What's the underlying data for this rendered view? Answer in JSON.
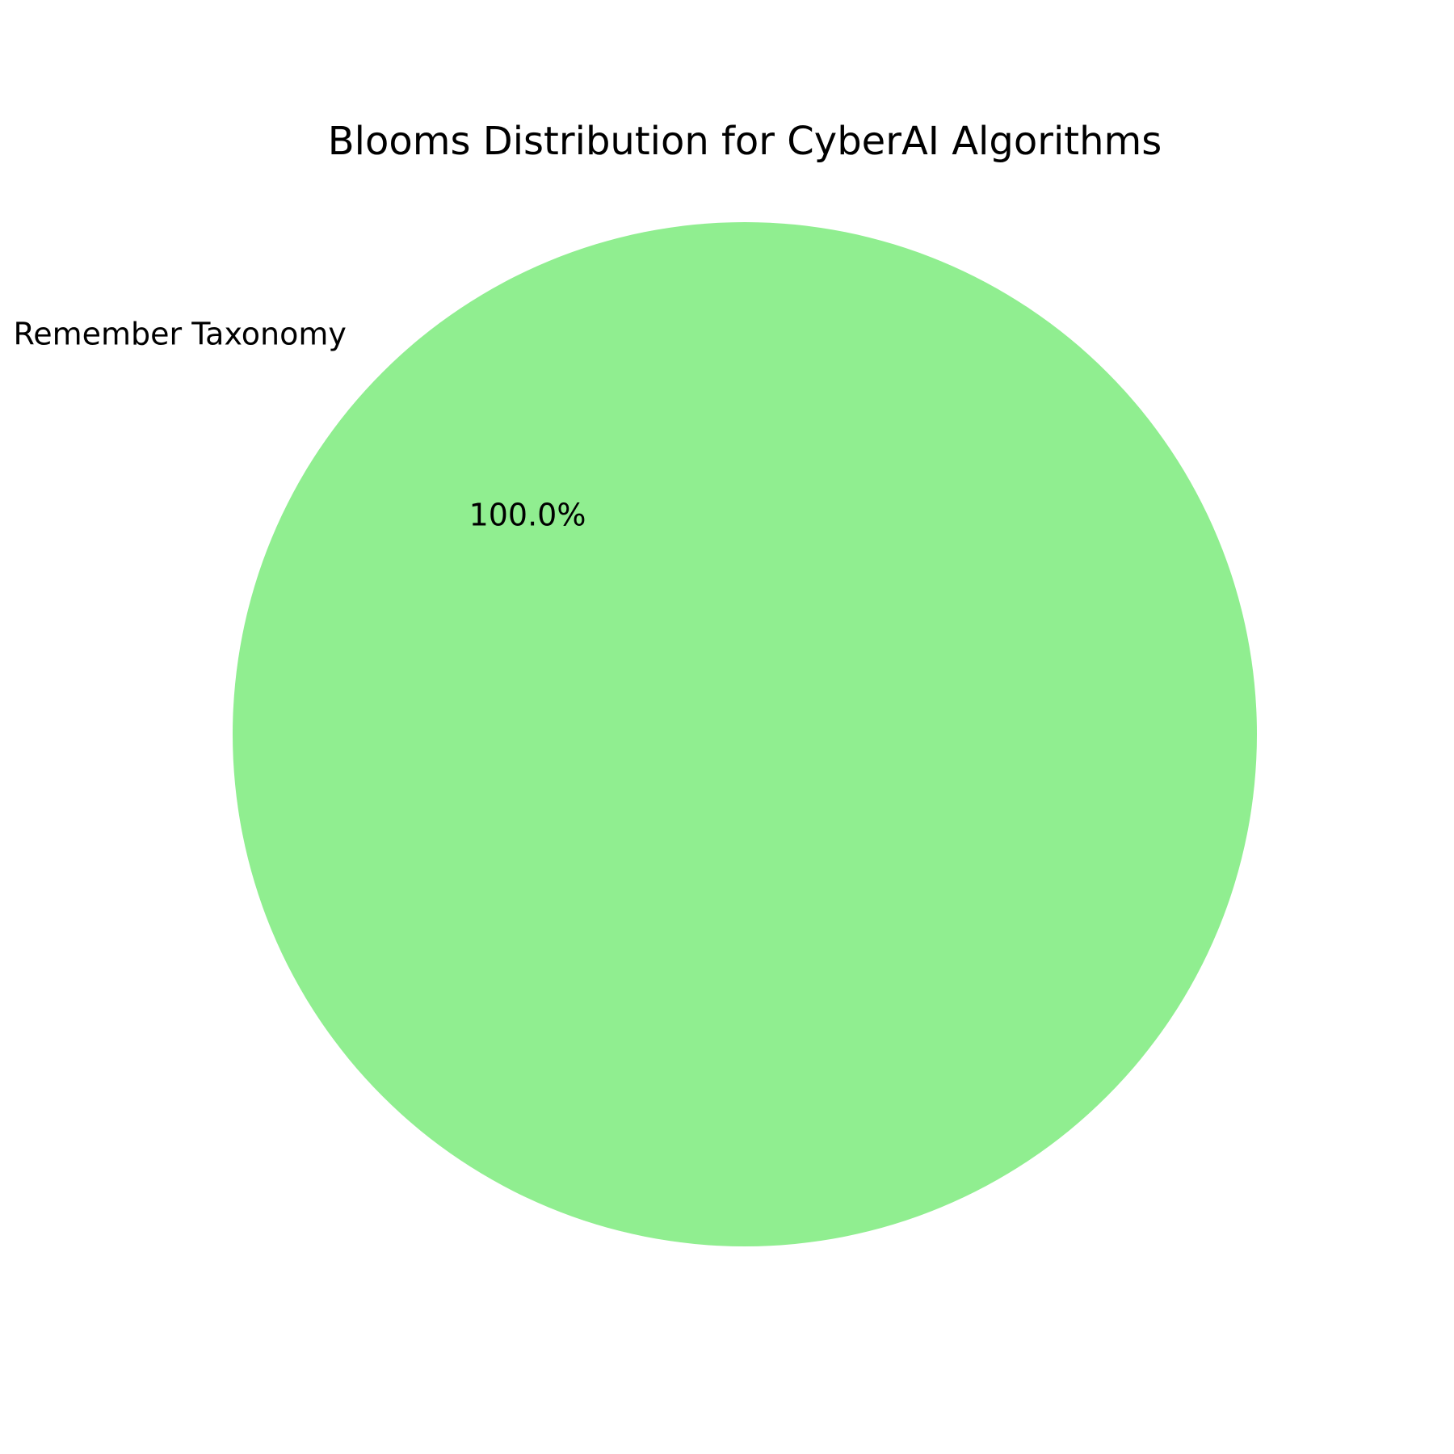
{
  "chart_data": {
    "type": "pie",
    "title": "Blooms Distribution for CyberAI Algorithms",
    "slices": [
      {
        "label": "Remember Taxonomy",
        "value": 100.0,
        "percent_label": "100.0%",
        "color": "#90ee90"
      }
    ]
  }
}
